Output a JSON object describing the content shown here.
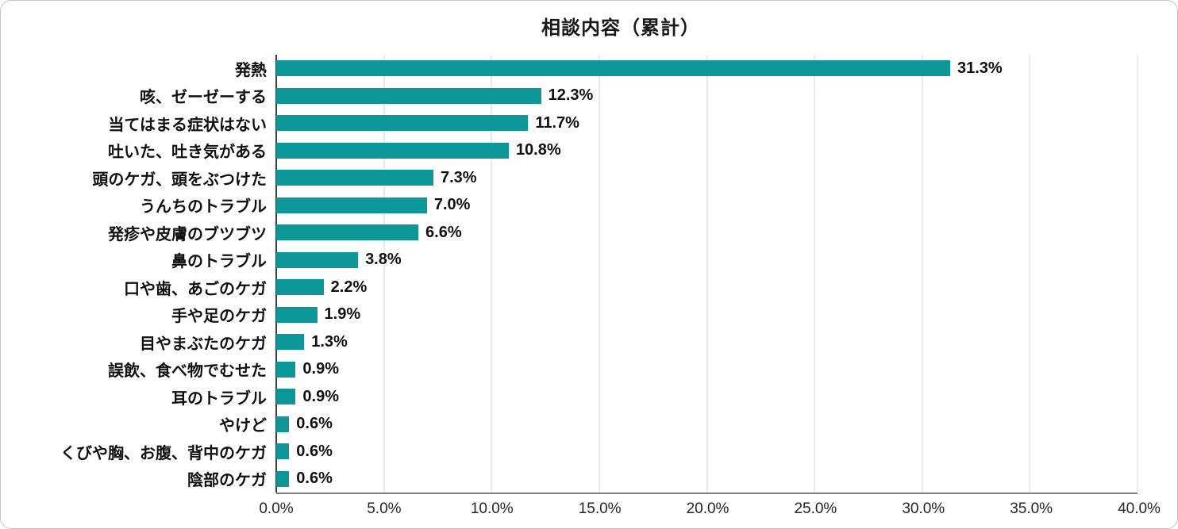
{
  "chart": {
    "title": "相談内容（累計）",
    "bar_color": "#0d9799",
    "gridline_color": "#d6d6d6",
    "axis_color": "#3f3f3f",
    "bottom_axis_color": "#7f7f7f"
  },
  "chart_data": {
    "type": "bar",
    "orientation": "horizontal",
    "title": "相談内容（累計）",
    "categories": [
      "発熱",
      "咳、ゼーゼーする",
      "当てはまる症状はない",
      "吐いた、吐き気がある",
      "頭のケガ、頭をぶつけた",
      "うんちのトラブル",
      "発疹や皮膚のブツブツ",
      "鼻のトラブル",
      "口や歯、あごのケガ",
      "手や足のケガ",
      "目やまぶたのケガ",
      "誤飲、食べ物でむせた",
      "耳のトラブル",
      "やけど",
      "くびや胸、お腹、背中のケガ",
      "陰部のケガ"
    ],
    "values": [
      31.3,
      12.3,
      11.7,
      10.8,
      7.3,
      7.0,
      6.6,
      3.8,
      2.2,
      1.9,
      1.3,
      0.9,
      0.9,
      0.6,
      0.6,
      0.6
    ],
    "value_labels": [
      "31.3%",
      "12.3%",
      "11.7%",
      "10.8%",
      "7.3%",
      "7.0%",
      "6.6%",
      "3.8%",
      "2.2%",
      "1.9%",
      "1.3%",
      "0.9%",
      "0.9%",
      "0.6%",
      "0.6%",
      "0.6%"
    ],
    "xlabel": "",
    "ylabel": "",
    "xlim": [
      0,
      40
    ],
    "x_ticks": [
      "0.0%",
      "5.0%",
      "10.0%",
      "15.0%",
      "20.0%",
      "25.0%",
      "30.0%",
      "35.0%",
      "40.0%"
    ],
    "x_tick_values": [
      0,
      5,
      10,
      15,
      20,
      25,
      30,
      35,
      40
    ],
    "grid": true,
    "legend": false,
    "bar_color": "#0d9799"
  }
}
